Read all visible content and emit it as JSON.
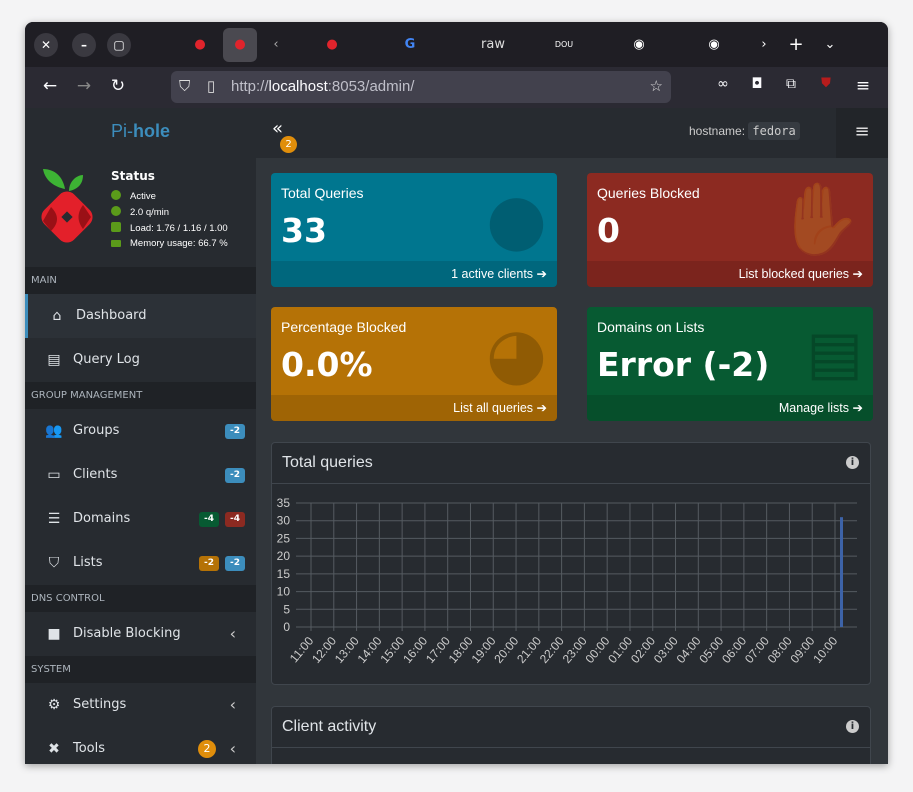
{
  "browser": {
    "tabs": [
      "",
      "",
      "",
      "",
      "raw",
      "DOU",
      "",
      ""
    ],
    "url_prefix": "http://",
    "url_host": "localhost",
    "url_rest": ":8053/admin/"
  },
  "brand": {
    "pi": "Pi-",
    "hole": "hole"
  },
  "status": {
    "title": "Status",
    "active": "Active",
    "rate": "2.0 q/min",
    "load": "Load: 1.76 / 1.16 / 1.00",
    "memory": "Memory usage: 66.7 %"
  },
  "sidebar": {
    "main": "MAIN",
    "dashboard": "Dashboard",
    "querylog": "Query Log",
    "group": "GROUP MANAGEMENT",
    "groups": "Groups",
    "groups_badge": "-2",
    "clients": "Clients",
    "clients_badge": "-2",
    "domains": "Domains",
    "domains_allow": "-4",
    "domains_deny": "-4",
    "lists": "Lists",
    "lists_a": "-2",
    "lists_b": "-2",
    "dns": "DNS CONTROL",
    "disable": "Disable Blocking",
    "system": "SYSTEM",
    "settings": "Settings",
    "tools": "Tools",
    "tools_badge": "2"
  },
  "header": {
    "notif": "2",
    "hostname_label": "hostname:",
    "hostname": "fedora"
  },
  "cards": [
    {
      "title": "Total Queries",
      "value": "33",
      "footer": "1 active clients",
      "color": "#00768f"
    },
    {
      "title": "Queries Blocked",
      "value": "0",
      "footer": "List blocked queries",
      "color": "#8c2a21"
    },
    {
      "title": "Percentage Blocked",
      "value": "0.0%",
      "footer": "List all queries",
      "color": "#b57206"
    },
    {
      "title": "Domains on Lists",
      "value": "Error (-2)",
      "footer": "Manage lists",
      "color": "#075a32"
    }
  ],
  "chart_box": {
    "title": "Total queries"
  },
  "client_box": {
    "title": "Client activity"
  },
  "chart_data": {
    "type": "bar",
    "categories": [
      "11:00",
      "12:00",
      "13:00",
      "14:00",
      "15:00",
      "16:00",
      "17:00",
      "18:00",
      "19:00",
      "20:00",
      "21:00",
      "22:00",
      "23:00",
      "00:00",
      "01:00",
      "02:00",
      "03:00",
      "04:00",
      "05:00",
      "06:00",
      "07:00",
      "08:00",
      "09:00",
      "10:00"
    ],
    "values": [
      0,
      0,
      0,
      0,
      0,
      0,
      0,
      0,
      0,
      0,
      0,
      0,
      0,
      0,
      0,
      0,
      0,
      0,
      0,
      0,
      0,
      0,
      0,
      31
    ],
    "yticks": [
      0,
      5,
      10,
      15,
      20,
      25,
      30,
      35
    ],
    "ylim": [
      0,
      35
    ],
    "grid": true,
    "bar_color": "#3d63a8"
  }
}
